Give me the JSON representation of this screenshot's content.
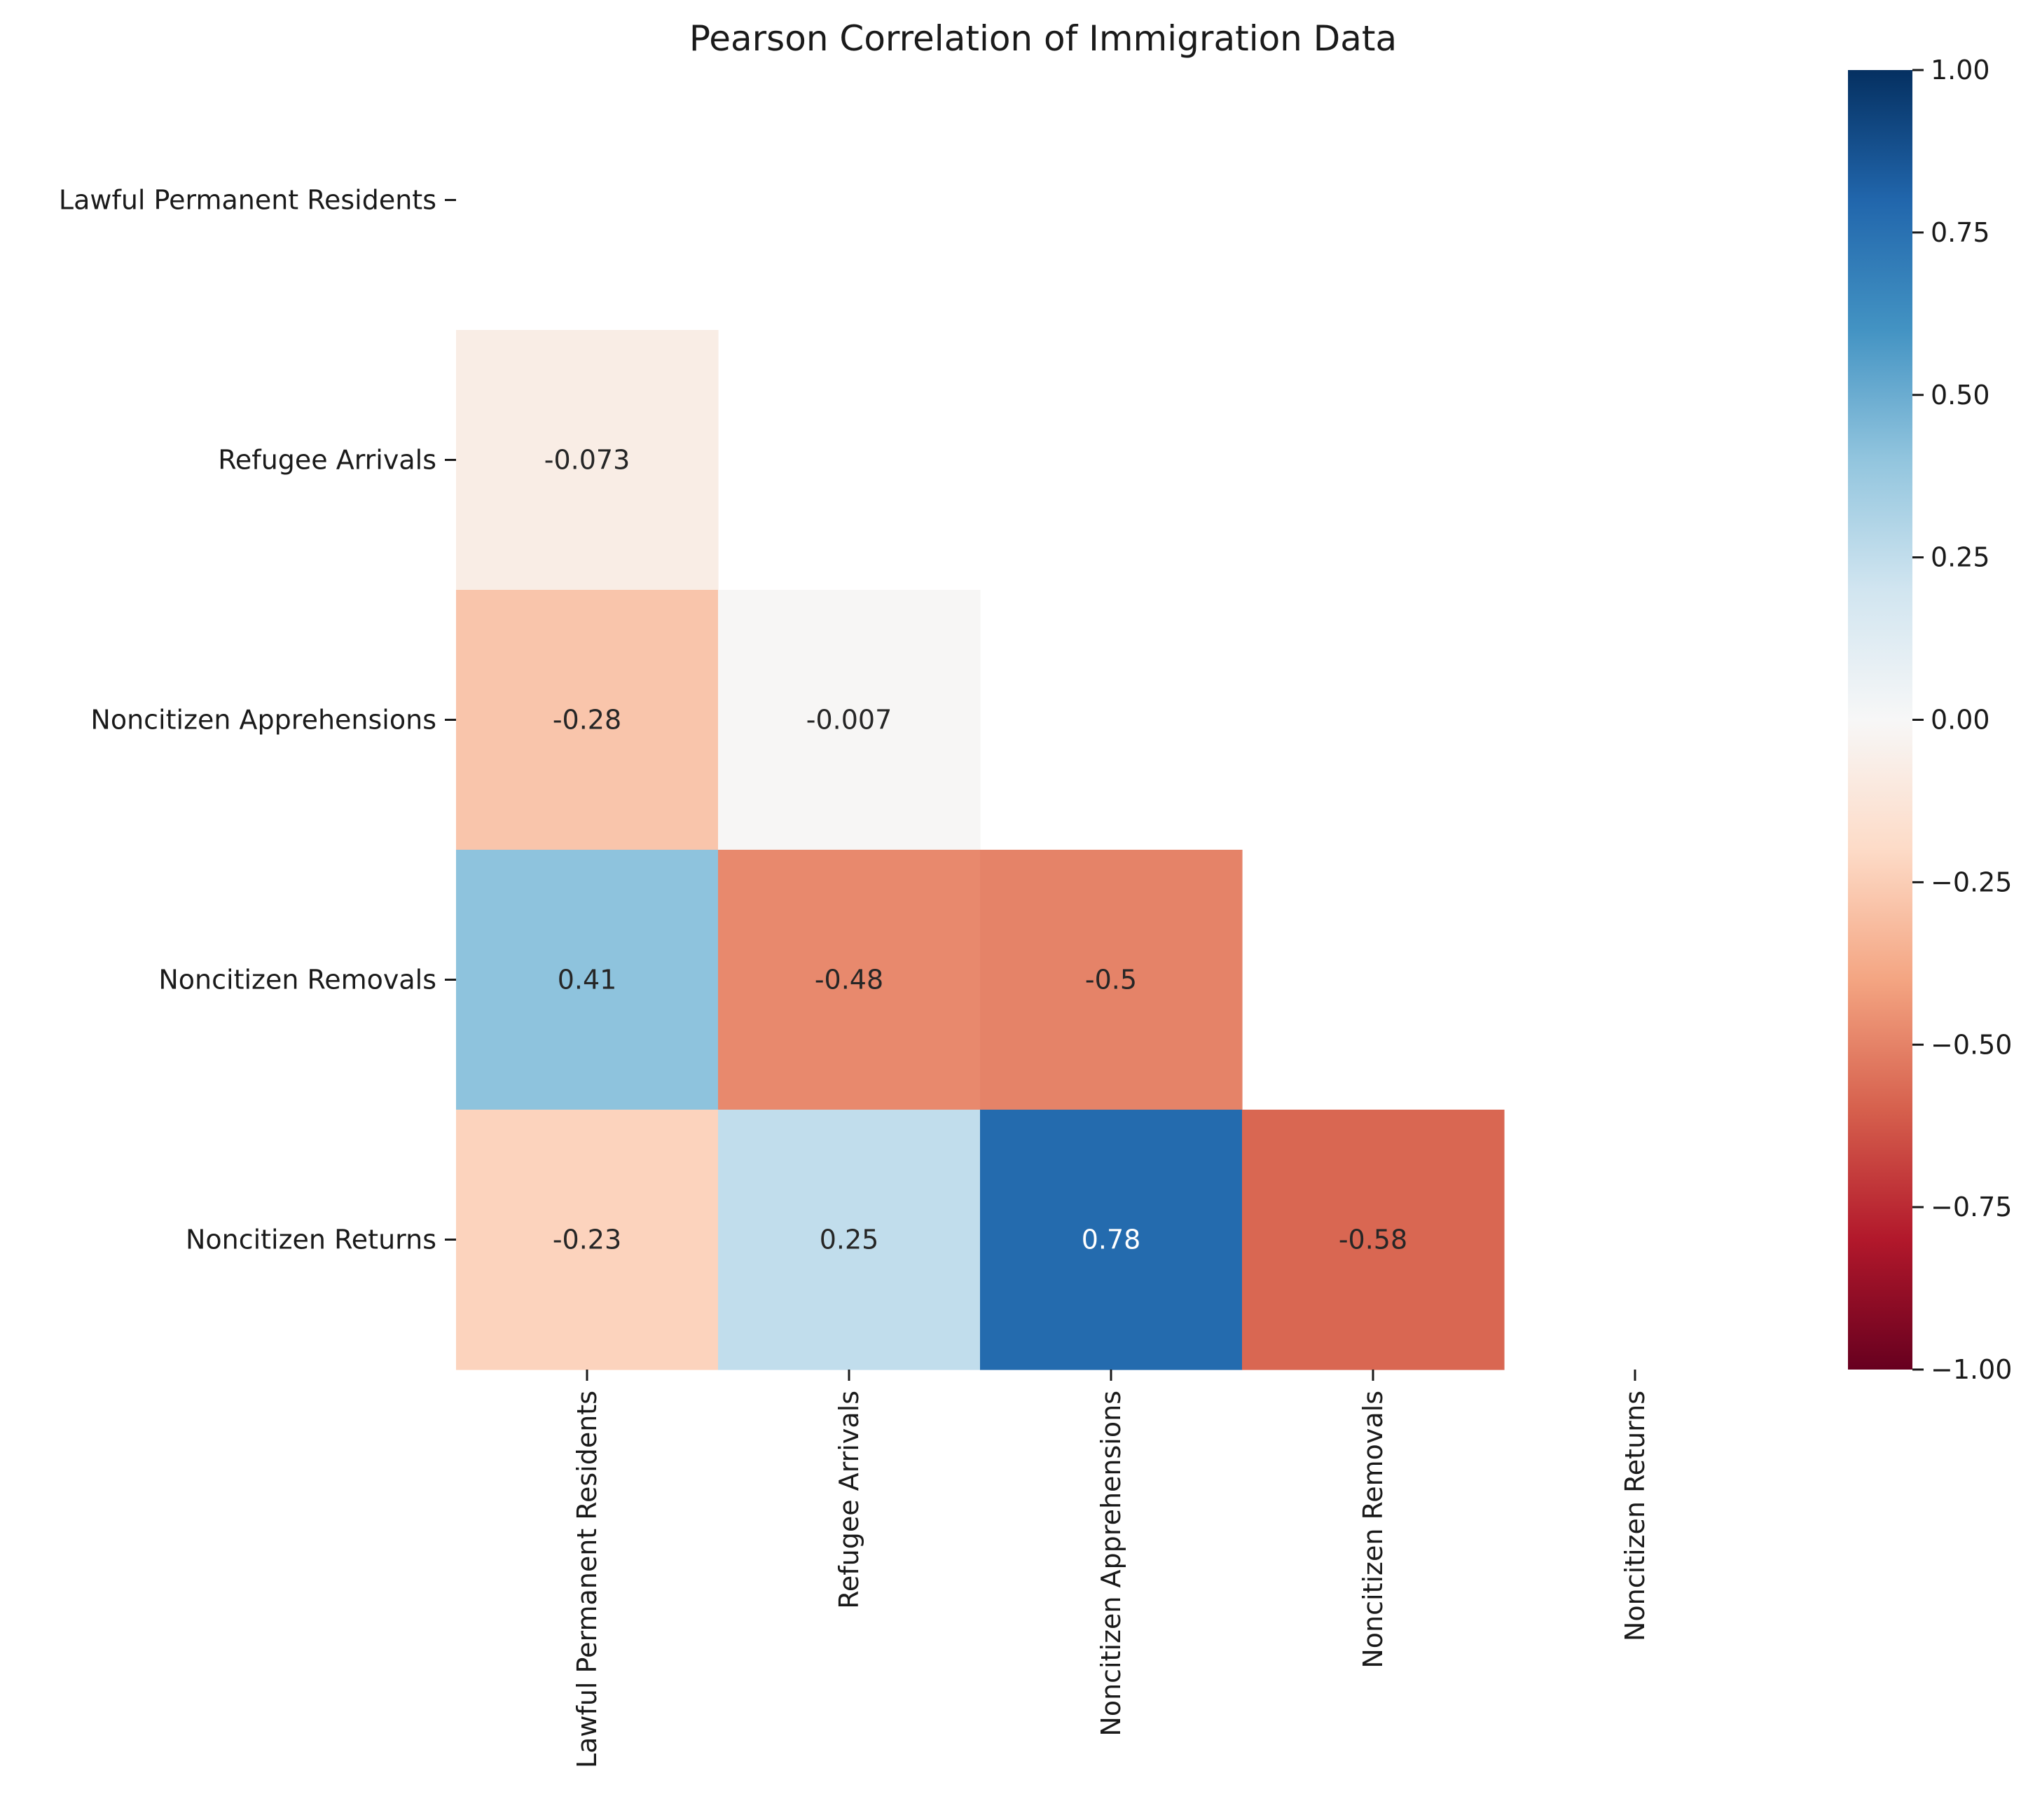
{
  "chart_data": {
    "type": "heatmap",
    "title": "Pearson Correlation of Immigration Data",
    "variables": [
      "Lawful Permanent Residents",
      "Refugee Arrivals",
      "Noncitizen Apprehensions",
      "Noncitizen Removals",
      "Noncitizen Returns"
    ],
    "mask": "upper-triangle-including-diagonal",
    "cells": [
      {
        "row": 1,
        "col": 0,
        "value": -0.073,
        "label": "-0.073"
      },
      {
        "row": 2,
        "col": 0,
        "value": -0.28,
        "label": "-0.28"
      },
      {
        "row": 2,
        "col": 1,
        "value": -0.007,
        "label": "-0.007"
      },
      {
        "row": 3,
        "col": 0,
        "value": 0.41,
        "label": "0.41"
      },
      {
        "row": 3,
        "col": 1,
        "value": -0.48,
        "label": "-0.48"
      },
      {
        "row": 3,
        "col": 2,
        "value": -0.5,
        "label": "-0.5"
      },
      {
        "row": 4,
        "col": 0,
        "value": -0.23,
        "label": "-0.23"
      },
      {
        "row": 4,
        "col": 1,
        "value": 0.25,
        "label": "0.25"
      },
      {
        "row": 4,
        "col": 2,
        "value": 0.78,
        "label": "0.78"
      },
      {
        "row": 4,
        "col": 3,
        "value": -0.58,
        "label": "-0.58"
      }
    ],
    "colormap": "RdBu",
    "vmin": -1,
    "vmax": 1,
    "colorbar": {
      "position": "right",
      "ticks": [
        1.0,
        0.75,
        0.5,
        0.25,
        0.0,
        -0.25,
        -0.5,
        -0.75,
        -1.0
      ],
      "tick_labels": [
        "1.00",
        "0.75",
        "0.50",
        "0.25",
        "0.00",
        "−0.25",
        "−0.50",
        "−0.75",
        "−1.00"
      ]
    },
    "grid": false
  }
}
